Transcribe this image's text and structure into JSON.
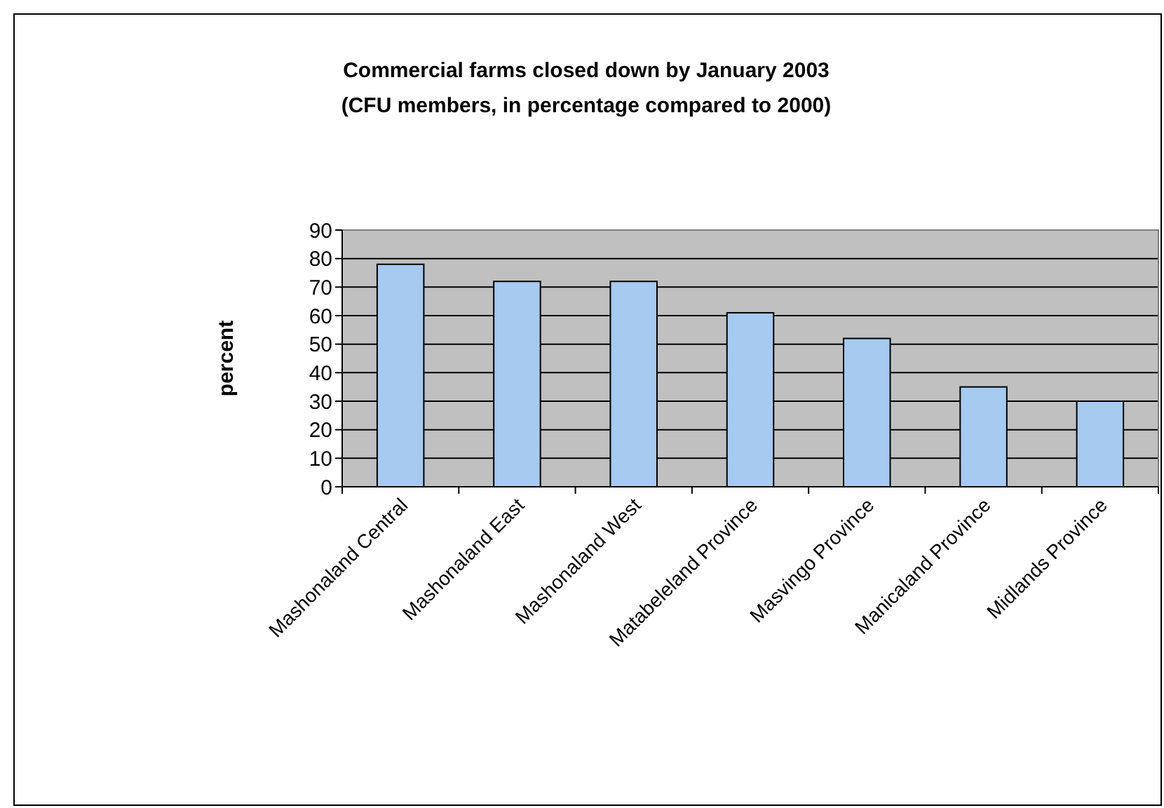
{
  "chart_data": {
    "type": "bar",
    "title": "Commercial farms closed down by January 2003\n(CFU members, in percentage compared to 2000)",
    "ylabel": "percent",
    "categories": [
      "Mashonaland Central",
      "Mashonaland East",
      "Mashonaland West",
      "Matabeleland Province",
      "Masvingo Province",
      "Manicaland Province",
      "Midlands Province"
    ],
    "values": [
      78,
      72,
      72,
      61,
      52,
      35,
      30
    ],
    "color": "#a6caf0",
    "ylim": [
      0,
      90
    ],
    "yticks": [
      0,
      10,
      20,
      30,
      40,
      50,
      60,
      70,
      80,
      90
    ],
    "grid": "y"
  }
}
